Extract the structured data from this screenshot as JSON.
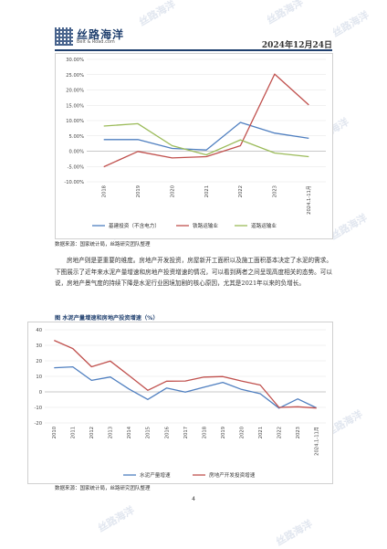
{
  "header": {
    "logo_name": "丝路海洋",
    "logo_url": "Belt & Road.com",
    "date": "2024年12月24日"
  },
  "paragraph": "房地产则是更重要的维度。房地产开发投资，房屋新开工面积以及施工面积基本决定了水泥的需求。下图展示了近年来水泥产量增速和房地产投资增速的情况，可以看到两者之间呈现高度相关的态势。可以说，房地产景气度的持续下降是水泥行业困境加剧的核心原因，尤其是2021年以来的负增长。",
  "source1": "数据来源：国家统计局，丝路研究团队整理",
  "source2": "数据来源：国家统计局，丝路研究团队整理",
  "caption2": "图 水泥产量增速和房地产投资增速（%）",
  "page_number": "4",
  "watermark": "丝路海洋",
  "chart_data": [
    {
      "type": "line",
      "categories": [
        "2018",
        "2019",
        "2020",
        "2021",
        "2022",
        "2023",
        "2024.1-11月"
      ],
      "yticks": [
        "30.00%",
        "25.00%",
        "20.00%",
        "15.00%",
        "10.00%",
        "5.00%",
        "0.00%",
        "-5.00%",
        "-10.00%"
      ],
      "ylim": [
        -10,
        30
      ],
      "legend_position": "bottom",
      "grid": true,
      "series": [
        {
          "name": "基建投资（不含电力）",
          "color": "#4f7fc0",
          "values": [
            3.8,
            3.8,
            0.9,
            0.4,
            9.4,
            5.9,
            4.2
          ]
        },
        {
          "name": "铁路运输业",
          "color": "#c0504d",
          "values": [
            -5.1,
            -0.1,
            -2.2,
            -1.8,
            1.8,
            25.2,
            15.1
          ]
        },
        {
          "name": "道路运输业",
          "color": "#9bbb59",
          "values": [
            8.2,
            9.0,
            1.8,
            -1.2,
            3.7,
            -0.6,
            -1.8
          ]
        }
      ]
    },
    {
      "type": "line",
      "categories": [
        "2010",
        "2011",
        "2012",
        "2013",
        "2014",
        "2015",
        "2016",
        "2017",
        "2018",
        "2019",
        "2020",
        "2021",
        "2022",
        "2023",
        "2024.1-11月"
      ],
      "yticks": [
        "40",
        "30",
        "20",
        "10",
        "0",
        "-10",
        "-20"
      ],
      "ylim": [
        -20,
        40
      ],
      "legend_position": "bottom",
      "grid": true,
      "series": [
        {
          "name": "水泥产量增速",
          "color": "#4f7fc0",
          "values": [
            15.5,
            16.1,
            7.4,
            9.6,
            1.8,
            -4.9,
            2.5,
            -0.2,
            3.0,
            6.1,
            1.6,
            -1.2,
            -10.5,
            -4.5,
            -10.3
          ]
        },
        {
          "name": "房地产开发投资增速",
          "color": "#c0504d",
          "values": [
            33.2,
            27.9,
            16.2,
            19.8,
            10.5,
            1.0,
            6.9,
            7.0,
            9.5,
            9.9,
            7.0,
            4.4,
            -10.0,
            -9.6,
            -10.4
          ]
        }
      ]
    }
  ]
}
